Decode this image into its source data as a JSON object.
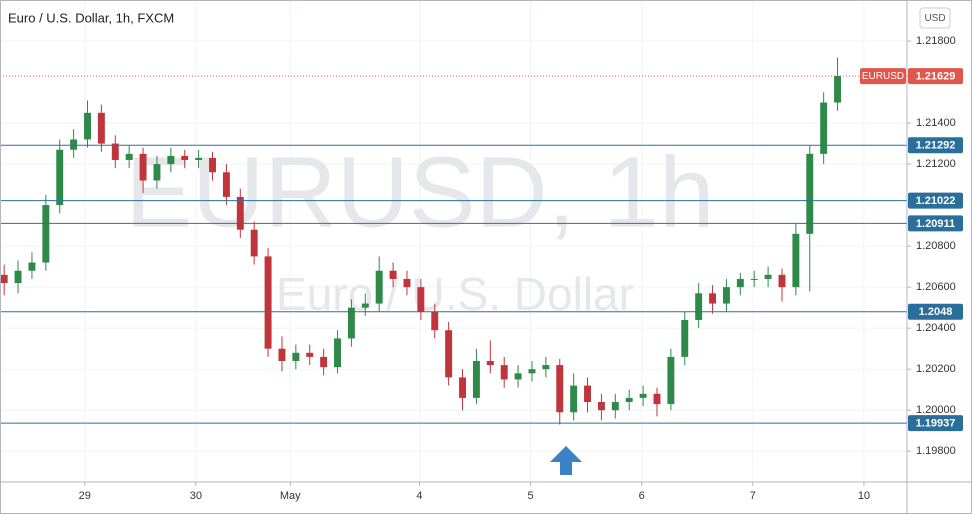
{
  "chart_data": {
    "type": "candlestick",
    "title": "Euro / U.S. Dollar, 1h, FXCM",
    "watermark": "EURUSD, 1h",
    "watermark_sub": "Euro / U.S. Dollar",
    "currency": "USD",
    "symbol": "EURUSD",
    "last_price": 1.21629,
    "last_color": "#e0564c",
    "levels": [
      1.21292,
      1.21022,
      1.20911,
      1.2048,
      1.19937
    ],
    "level_color": "#2a6f9c",
    "up_color": "#2f8a4a",
    "down_color": "#c0353b",
    "grid": true,
    "x": [
      0,
      1,
      2,
      3,
      4,
      5,
      6,
      7,
      8,
      9,
      10,
      11,
      12,
      13,
      14,
      15,
      16,
      17,
      18,
      19,
      20,
      21,
      22,
      23,
      24,
      25,
      26,
      27,
      28,
      29,
      30,
      31,
      32,
      33,
      34,
      35,
      36,
      37,
      38,
      39,
      40,
      41,
      42,
      43,
      44,
      45,
      46,
      47,
      48,
      49,
      50,
      51,
      52,
      53,
      54,
      55,
      56,
      57,
      58,
      59,
      60
    ],
    "open": [
      1.2066,
      1.2062,
      1.2068,
      1.2072,
      1.21,
      1.2127,
      1.2132,
      1.2145,
      1.213,
      1.2122,
      1.2125,
      1.2112,
      1.212,
      1.2124,
      1.2122,
      1.2123,
      1.2116,
      1.2104,
      1.2088,
      1.2075,
      1.203,
      1.2024,
      1.2028,
      1.2026,
      1.2021,
      1.2035,
      1.205,
      1.2052,
      1.2068,
      1.2064,
      1.206,
      1.2048,
      1.2039,
      1.2016,
      1.2006,
      1.2024,
      1.2022,
      1.2015,
      1.2018,
      1.202,
      1.2022,
      1.1999,
      1.2012,
      1.2004,
      1.2,
      1.2004,
      1.2006,
      1.2008,
      1.2003,
      1.2026,
      1.2044,
      1.2057,
      1.2052,
      1.206,
      1.2064,
      1.2064,
      1.2066,
      1.206,
      1.2086,
      1.2125,
      1.215
    ],
    "high": [
      1.2071,
      1.2073,
      1.2077,
      1.2105,
      1.2132,
      1.2137,
      1.2151,
      1.2149,
      1.2134,
      1.2129,
      1.2128,
      1.2124,
      1.2128,
      1.2127,
      1.2127,
      1.2126,
      1.212,
      1.2108,
      1.2092,
      1.2079,
      1.2036,
      1.2032,
      1.2032,
      1.203,
      1.2039,
      1.2054,
      1.2057,
      1.2075,
      1.2072,
      1.2068,
      1.2064,
      1.2052,
      1.2043,
      1.202,
      1.203,
      1.2034,
      1.2026,
      1.2022,
      1.2024,
      1.2026,
      1.2025,
      1.2018,
      1.2016,
      1.2008,
      1.2008,
      1.201,
      1.2012,
      1.2011,
      1.203,
      1.2048,
      1.2062,
      1.2061,
      1.2064,
      1.2067,
      1.2068,
      1.207,
      1.2069,
      1.2091,
      1.2129,
      1.2155,
      1.2172
    ],
    "low": [
      1.2056,
      1.2057,
      1.2064,
      1.2068,
      1.2096,
      1.2123,
      1.2128,
      1.2126,
      1.2118,
      1.2118,
      1.2106,
      1.2108,
      1.2116,
      1.2118,
      1.2118,
      1.2112,
      1.21,
      1.2084,
      1.2071,
      1.2026,
      1.2019,
      1.202,
      1.2022,
      1.2017,
      1.2018,
      1.2031,
      1.2046,
      1.2048,
      1.206,
      1.2056,
      1.2044,
      1.2035,
      1.2012,
      1.2,
      1.2003,
      1.2018,
      1.2011,
      1.2011,
      1.2014,
      1.2016,
      1.1993,
      1.1995,
      1.1999,
      1.1995,
      1.1996,
      1.2,
      1.2002,
      1.1997,
      1.2,
      1.2022,
      1.204,
      1.2047,
      1.2048,
      1.2056,
      1.206,
      1.206,
      1.2053,
      1.2056,
      1.2058,
      1.212,
      1.2146
    ],
    "close": [
      1.2062,
      1.2068,
      1.2072,
      1.21,
      1.2127,
      1.2132,
      1.2145,
      1.213,
      1.2122,
      1.2125,
      1.2112,
      1.212,
      1.2124,
      1.2122,
      1.2123,
      1.2116,
      1.2104,
      1.2088,
      1.2075,
      1.203,
      1.2024,
      1.2028,
      1.2026,
      1.2021,
      1.2035,
      1.205,
      1.2052,
      1.2068,
      1.2064,
      1.206,
      1.2048,
      1.2039,
      1.2016,
      1.2006,
      1.2024,
      1.2022,
      1.2015,
      1.2018,
      1.202,
      1.2022,
      1.1999,
      1.2012,
      1.2004,
      1.2,
      1.2004,
      1.2006,
      1.2008,
      1.2003,
      1.2026,
      1.2044,
      1.2057,
      1.2052,
      1.206,
      1.2064,
      1.2064,
      1.2066,
      1.206,
      1.2086,
      1.2125,
      1.215,
      1.2163
    ],
    "xlim": [
      -0.3,
      65
    ],
    "xticks": [
      {
        "value": 5.8,
        "label": "29"
      },
      {
        "value": 13.8,
        "label": "30"
      },
      {
        "value": 20.6,
        "label": "May"
      },
      {
        "value": 29.9,
        "label": "4"
      },
      {
        "value": 37.9,
        "label": "5"
      },
      {
        "value": 45.9,
        "label": "6"
      },
      {
        "value": 53.9,
        "label": "7"
      },
      {
        "value": 61.9,
        "label": "10"
      }
    ],
    "ylim": [
      1.1965,
      1.22
    ],
    "yticks": [
      {
        "value": 1.218,
        "label": "1.21800"
      },
      {
        "value": 1.214,
        "label": "1.21400"
      },
      {
        "value": 1.212,
        "label": "1.21200"
      },
      {
        "value": 1.208,
        "label": "1.20800"
      },
      {
        "value": 1.206,
        "label": "1.20600"
      },
      {
        "value": 1.204,
        "label": "1.20400"
      },
      {
        "value": 1.202,
        "label": "1.20200"
      },
      {
        "value": 1.2,
        "label": "1.20000"
      },
      {
        "value": 1.198,
        "label": "1.19800"
      }
    ]
  }
}
